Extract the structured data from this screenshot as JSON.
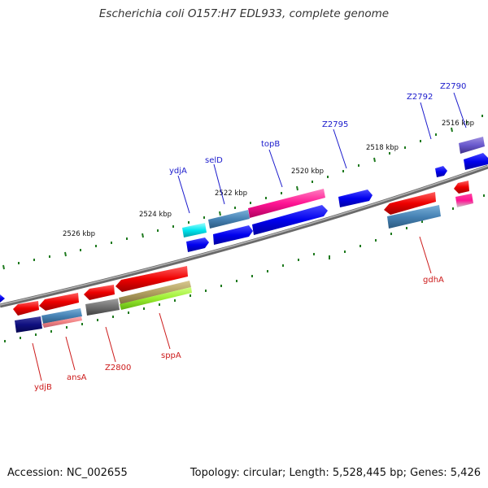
{
  "title": "Escherichia coli O157:H7 EDL933, complete genome",
  "accession": "Accession: NC_002655",
  "summary": "Topology: circular; Length: 5,528,445 bp; Genes: 5,426",
  "tick_labels": [
    "2516 kbp",
    "2518 kbp",
    "2520 kbp",
    "2522 kbp",
    "2524 kbp",
    "2526 kbp"
  ],
  "gene_labels_top": [
    "Z2790",
    "Z2792",
    "Z2795",
    "topB",
    "selD",
    "ydjA"
  ],
  "gene_labels_bottom": [
    "gdhA",
    "sppA",
    "Z2800",
    "ansA",
    "ydjB"
  ],
  "colors": {
    "backbone": "#8a8a8a",
    "tick": "#1f7a1f",
    "label_top": "#1a1acc",
    "label_bottom": "#cc1a1a"
  }
}
